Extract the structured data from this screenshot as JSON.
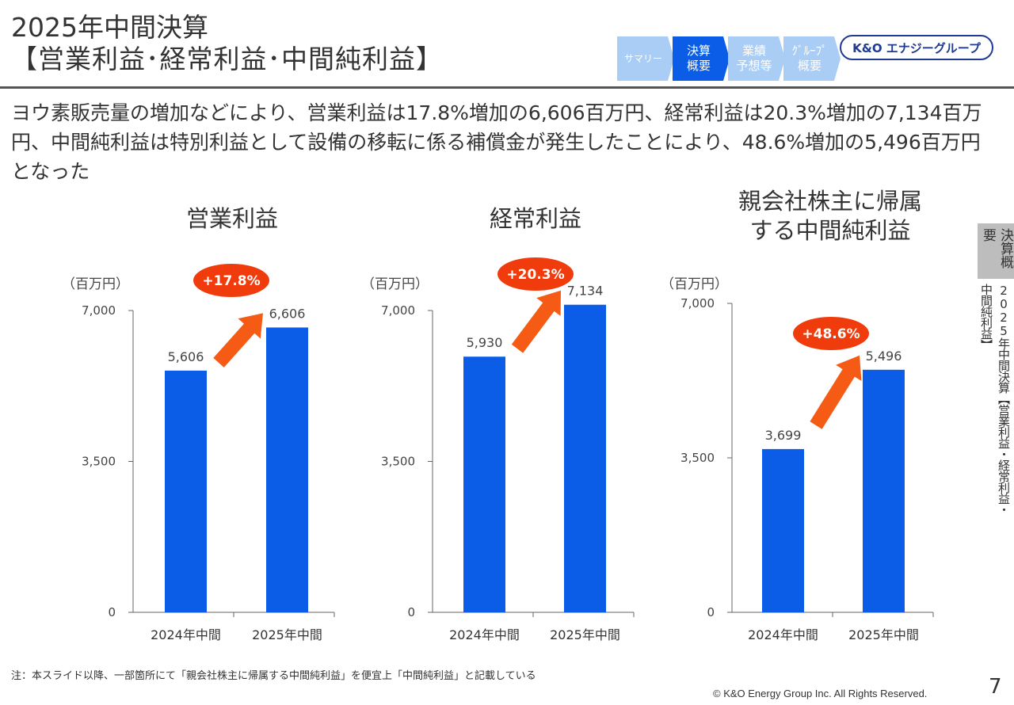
{
  "header": {
    "title_line1": "2025年中間決算",
    "title_line2": "【営業利益･経常利益･中間純利益】"
  },
  "nav": {
    "tabs": [
      {
        "label": "サマリー",
        "active": false,
        "small": true
      },
      {
        "label": "決算\n概要",
        "active": true,
        "small": false
      },
      {
        "label": "業績\n予想等",
        "active": false,
        "small": false
      },
      {
        "label": "ｸﾞﾙｰﾌﾟ\n概要",
        "active": false,
        "small": false
      }
    ],
    "active_color": "#0b5de8",
    "inactive_color": "#a9cdf5"
  },
  "logo": {
    "text": "K&O エナジーグループ"
  },
  "lead_text": "ヨウ素販売量の増加などにより、営業利益は17.8%増加の6,606百万円、経常利益は20.3%増加の7,134百万円、中間純利益は特別利益として設備の移転に係る補償金が発生したことにより、48.6%増加の5,496百万円となった",
  "side": {
    "tab_label": "決算概要",
    "title": "2025年中間決算【営業利益・経常利益・中間純利益】"
  },
  "charts": {
    "operating": {
      "title": "営業利益",
      "unit": "（百万円）",
      "growth": "+17.8%"
    },
    "ordinary": {
      "title": "経常利益",
      "unit": "（百万円）",
      "growth": "+20.3%"
    },
    "net": {
      "title_line1": "親会社株主に帰属",
      "title_line2": "する中間純利益",
      "unit": "（百万円）",
      "growth": "+48.6%"
    }
  },
  "chart_data": [
    {
      "type": "bar",
      "title": "営業利益",
      "ylabel": "（百万円）",
      "categories": [
        "2024年中間",
        "2025年中間"
      ],
      "values": [
        5606,
        6606
      ],
      "value_labels": [
        "5,606",
        "6,606"
      ],
      "ylim": [
        0,
        7000
      ],
      "yticks": [
        0,
        3500,
        7000
      ],
      "ytick_labels": [
        "0",
        "3,500",
        "7,000"
      ],
      "annotation": "+17.8%"
    },
    {
      "type": "bar",
      "title": "経常利益",
      "ylabel": "（百万円）",
      "categories": [
        "2024年中間",
        "2025年中間"
      ],
      "values": [
        5930,
        7134
      ],
      "value_labels": [
        "5,930",
        "7,134"
      ],
      "ylim": [
        0,
        7000
      ],
      "yticks": [
        0,
        3500,
        7000
      ],
      "ytick_labels": [
        "0",
        "3,500",
        "7,000"
      ],
      "annotation": "+20.3%"
    },
    {
      "type": "bar",
      "title": "親会社株主に帰属する中間純利益",
      "ylabel": "（百万円）",
      "categories": [
        "2024年中間",
        "2025年中間"
      ],
      "values": [
        3699,
        5496
      ],
      "value_labels": [
        "3,699",
        "5,496"
      ],
      "ylim": [
        0,
        7000
      ],
      "yticks": [
        0,
        3500,
        7000
      ],
      "ytick_labels": [
        "0",
        "3,500",
        "7,000"
      ],
      "annotation": "+48.6%"
    }
  ],
  "colors": {
    "bar": "#0b5de8",
    "arrow": "#f55b14",
    "badge": "#f03c0c"
  },
  "footnote": "注：本スライド以降、一部箇所にて「親会社株主に帰属する中間純利益」を便宜上「中間純利益」と記載している",
  "copyright": "© K&O Energy Group Inc. All Rights Reserved.",
  "page_number": "7"
}
